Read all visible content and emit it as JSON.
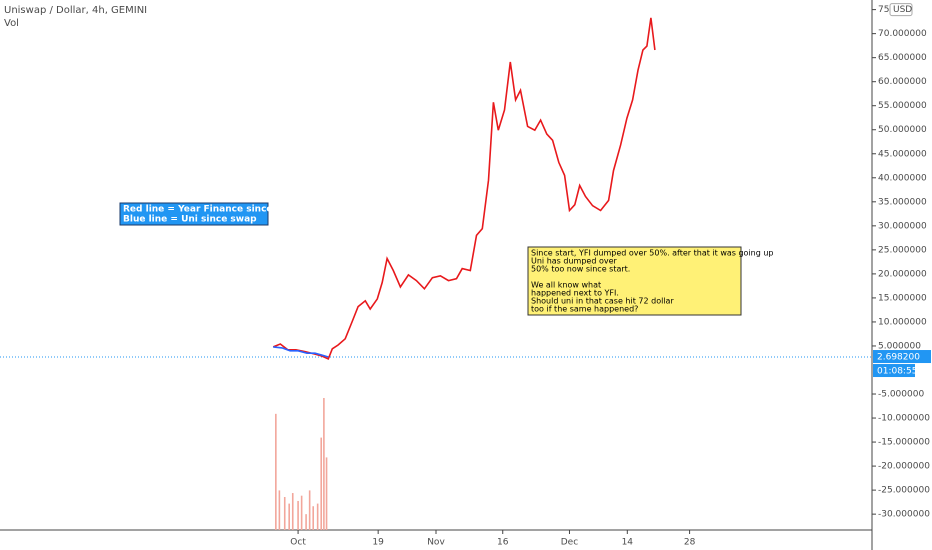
{
  "chart_data": {
    "type": "line",
    "title": "Uniswap / Dollar, 4h, GEMINI",
    "subtitle": "Vol",
    "currency": "USD",
    "xlim": [
      -67,
      129
    ],
    "xticks": [
      {
        "value": 0,
        "label": "Oct"
      },
      {
        "value": 18,
        "label": "19"
      },
      {
        "value": 31,
        "label": "Nov"
      },
      {
        "value": 46,
        "label": "16"
      },
      {
        "value": 61,
        "label": "Dec"
      },
      {
        "value": 74,
        "label": "14"
      },
      {
        "value": 88,
        "label": "28"
      }
    ],
    "ylim": [
      -33.3,
      77.0
    ],
    "yticks": [
      {
        "value": 75,
        "label": "75.0"
      },
      {
        "value": 70,
        "label": "70.000000"
      },
      {
        "value": 65,
        "label": "65.000000"
      },
      {
        "value": 60,
        "label": "60.000000"
      },
      {
        "value": 55,
        "label": "55.000000"
      },
      {
        "value": 50,
        "label": "50.000000"
      },
      {
        "value": 45,
        "label": "45.000000"
      },
      {
        "value": 40,
        "label": "40.000000"
      },
      {
        "value": 35,
        "label": "35.000000"
      },
      {
        "value": 30,
        "label": "30.000000"
      },
      {
        "value": 25,
        "label": "25.000000"
      },
      {
        "value": 20,
        "label": "20.000000"
      },
      {
        "value": 15,
        "label": "15.000000"
      },
      {
        "value": 10,
        "label": "10.000000"
      },
      {
        "value": 5,
        "label": "5.000000"
      },
      {
        "value": -5,
        "label": "-5.000000"
      },
      {
        "value": -10,
        "label": "-10.000000"
      },
      {
        "value": -15,
        "label": "-15.000000"
      },
      {
        "value": -20,
        "label": "-20.000000"
      },
      {
        "value": -25,
        "label": "-25.000000"
      },
      {
        "value": -30,
        "label": "-30.000000"
      }
    ],
    "series": [
      {
        "name": "Red line = Year Finance since start",
        "color": "#e8191c",
        "x": [
          -5.6,
          -4,
          -2.3,
          -0.5,
          1.6,
          3.8,
          5.4,
          6.8,
          7.7,
          9.0,
          10.6,
          12.2,
          13.5,
          15.1,
          16.2,
          17.8,
          18.9,
          20.0,
          21.4,
          23.0,
          24.8,
          26.6,
          28.4,
          30.2,
          32.0,
          33.8,
          35.6,
          36.9,
          38.7,
          40.1,
          41.4,
          42.8,
          43.9,
          45.0,
          46.4,
          47.7,
          48.9,
          50.0,
          51.6,
          53.2,
          54.5,
          55.9,
          57.2,
          58.6,
          59.9,
          61.0,
          62.2,
          63.3,
          64.6,
          66.2,
          68.0,
          69.8,
          70.9,
          72.5,
          73.9,
          75.2,
          76.4,
          77.5,
          78.4,
          79.3,
          80.2
        ],
        "values": [
          4.8,
          5.4,
          4.2,
          4.2,
          3.8,
          3.3,
          2.9,
          2.3,
          4.4,
          5.2,
          6.5,
          10.2,
          13.2,
          14.4,
          12.7,
          14.8,
          18.2,
          23.2,
          20.7,
          17.3,
          19.8,
          18.6,
          16.9,
          19.2,
          19.6,
          18.6,
          19.0,
          21.1,
          20.7,
          28.0,
          29.4,
          39.5,
          55.7,
          49.9,
          54.1,
          64.1,
          56.2,
          58.2,
          50.7,
          49.9,
          52.0,
          49.1,
          47.8,
          43.2,
          40.5,
          33.2,
          34.4,
          38.4,
          36.1,
          34.2,
          33.2,
          35.3,
          41.5,
          46.8,
          52.4,
          56.2,
          62.4,
          66.6,
          67.4,
          73.3,
          66.6
        ]
      },
      {
        "name": "Blue line = Uni since swap",
        "color": "#2962ff",
        "x": [
          -5.6,
          -3.6,
          -1.8,
          0,
          2.0,
          3.8,
          5.4,
          6.8
        ],
        "values": [
          4.8,
          4.6,
          4.0,
          4.0,
          3.5,
          3.5,
          3.1,
          2.7
        ]
      }
    ],
    "volume": {
      "color": "#f2a69b",
      "x": [
        -5.0,
        -4.2,
        -3.0,
        -2.0,
        -1.2,
        0.0,
        0.8,
        1.8,
        2.6,
        3.4,
        4.4,
        5.2,
        5.8,
        6.4
      ],
      "values": [
        88,
        30,
        25,
        20,
        28,
        22,
        26,
        12,
        30,
        18,
        20,
        70,
        100,
        55
      ]
    },
    "last_price": {
      "value": 2.6982,
      "label": "2.698200"
    },
    "countdown": "01:08:55",
    "annotations": [
      {
        "lines": [
          "Red line = Year Finance since start",
          "Blue line = Uni since swap"
        ]
      },
      {
        "lines": [
          "Since start, YFI dumped over 50%. after that it was going up",
          "Uni has dumped over",
          "50% too now since start.",
          "We all know what",
          "happened next to YFI.",
          "Should uni in that case hit 72 dollar",
          "too if the same happened?"
        ]
      }
    ]
  }
}
